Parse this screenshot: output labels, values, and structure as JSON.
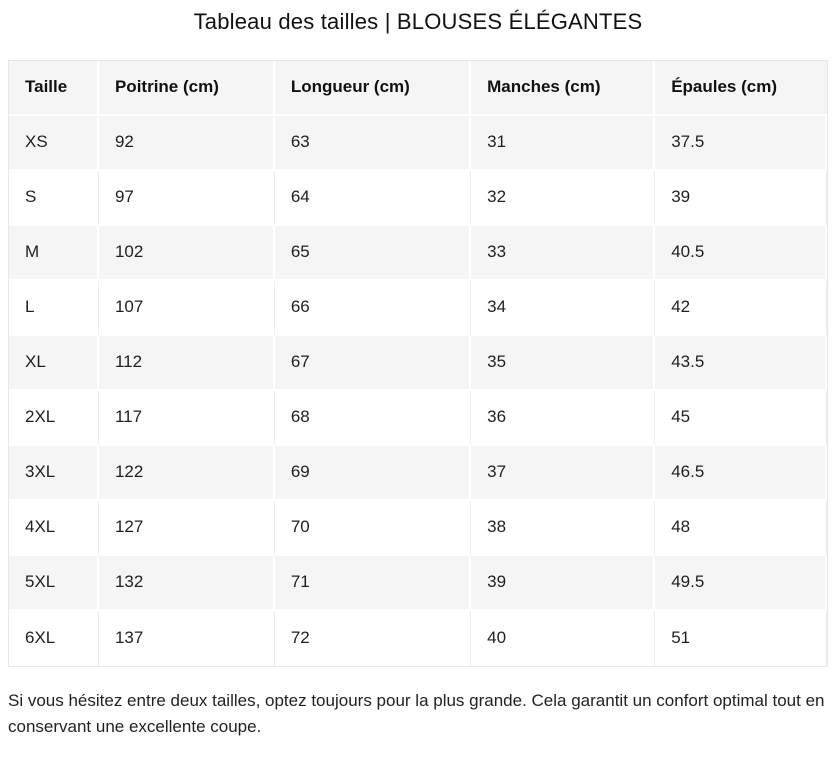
{
  "title": "Tableau des tailles | BLOUSES ÉLÉGANTES",
  "table": {
    "columns": [
      "Taille",
      "Poitrine (cm)",
      "Longueur (cm)",
      "Manches (cm)",
      "Épaules (cm)"
    ],
    "rows": [
      [
        "XS",
        "92",
        "63",
        "31",
        "37.5"
      ],
      [
        "S",
        "97",
        "64",
        "32",
        "39"
      ],
      [
        "M",
        "102",
        "65",
        "33",
        "40.5"
      ],
      [
        "L",
        "107",
        "66",
        "34",
        "42"
      ],
      [
        "XL",
        "112",
        "67",
        "35",
        "43.5"
      ],
      [
        "2XL",
        "117",
        "68",
        "36",
        "45"
      ],
      [
        "3XL",
        "122",
        "69",
        "37",
        "46.5"
      ],
      [
        "4XL",
        "127",
        "70",
        "38",
        "48"
      ],
      [
        "5XL",
        "132",
        "71",
        "39",
        "49.5"
      ],
      [
        "6XL",
        "137",
        "72",
        "40",
        "51"
      ]
    ]
  },
  "note": "Si vous hésitez entre deux tailles, optez toujours pour la plus grande. Cela garantit un confort optimal tout en conservant une excellente coupe.",
  "colors": {
    "page_bg": "#ffffff",
    "stripe_bg": "#f5f5f5",
    "header_bg": "#f5f5f5",
    "table_border": "#e7e7e7",
    "cell_separator_on_white": "#ededed",
    "cell_separator_on_gray": "#ffffff",
    "text": "#1f1f1f",
    "title_text": "#111111"
  }
}
